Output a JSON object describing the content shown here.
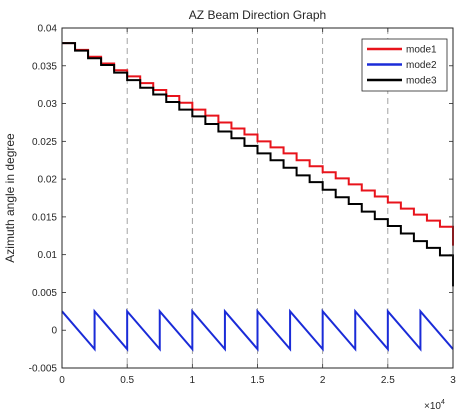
{
  "chart_data": {
    "type": "line",
    "title": "AZ Beam Direction Graph",
    "xlabel": "",
    "ylabel": "Azimuth angle in degree",
    "x_exponent_label": "×10",
    "x_exponent_power": "4",
    "xlim": [
      0,
      30000
    ],
    "ylim": [
      -0.005,
      0.04
    ],
    "x_ticks": [
      0,
      5000,
      10000,
      15000,
      20000,
      25000,
      30000
    ],
    "x_tick_labels": [
      "0",
      "0.5",
      "1",
      "1.5",
      "2",
      "2.5",
      "3"
    ],
    "y_ticks": [
      -0.005,
      0,
      0.005,
      0.01,
      0.015,
      0.02,
      0.025,
      0.03,
      0.035,
      0.04
    ],
    "y_tick_labels": [
      "-0.005",
      "0",
      "0.005",
      "0.01",
      "0.015",
      "0.02",
      "0.025",
      "0.03",
      "0.035",
      "0.04"
    ],
    "vertical_grid_lines_x": [
      5000,
      10000,
      15000,
      20000,
      25000
    ],
    "grid": "vertical dashed",
    "legend_position": "top-right",
    "series": [
      {
        "name": "mode1",
        "color": "#e8131b",
        "style": "staircase",
        "x": [
          0,
          1000,
          2000,
          3000,
          4000,
          5000,
          6000,
          7000,
          8000,
          9000,
          10000,
          11000,
          12000,
          13000,
          14000,
          15000,
          16000,
          17000,
          18000,
          19000,
          20000,
          21000,
          22000,
          23000,
          24000,
          25000,
          26000,
          27000,
          28000,
          29000,
          30000
        ],
        "values": [
          0.038,
          0.0371,
          0.0362,
          0.0353,
          0.0344,
          0.0336,
          0.0327,
          0.0318,
          0.031,
          0.0301,
          0.0292,
          0.0284,
          0.0275,
          0.0267,
          0.0259,
          0.025,
          0.0242,
          0.0234,
          0.0225,
          0.0217,
          0.0209,
          0.0201,
          0.0193,
          0.0185,
          0.0177,
          0.0169,
          0.0161,
          0.0153,
          0.0145,
          0.0137,
          0.0112
        ]
      },
      {
        "name": "mode2",
        "color": "#1a2bd8",
        "style": "sawtooth",
        "x": [
          0,
          2500,
          2500,
          5000,
          5000,
          7500,
          7500,
          10000,
          10000,
          12500,
          12500,
          15000,
          15000,
          17500,
          17500,
          20000,
          20000,
          22500,
          22500,
          25000,
          25000,
          27500,
          27500,
          30000
        ],
        "values": [
          0.0025,
          -0.0025,
          0.0025,
          -0.0025,
          0.0025,
          -0.0025,
          0.0025,
          -0.0025,
          0.0025,
          -0.0025,
          0.0025,
          -0.0025,
          0.0025,
          -0.0025,
          0.0025,
          -0.0025,
          0.0025,
          -0.0025,
          0.0025,
          -0.0025,
          0.0025,
          -0.0025,
          0.0025,
          -0.0025
        ]
      },
      {
        "name": "mode3",
        "color": "#000000",
        "style": "staircase",
        "x": [
          0,
          1000,
          2000,
          3000,
          4000,
          5000,
          6000,
          7000,
          8000,
          9000,
          10000,
          11000,
          12000,
          13000,
          14000,
          15000,
          16000,
          17000,
          18000,
          19000,
          20000,
          21000,
          22000,
          23000,
          24000,
          25000,
          26000,
          27000,
          28000,
          29000,
          30000
        ],
        "values": [
          0.038,
          0.037,
          0.036,
          0.0351,
          0.0341,
          0.0331,
          0.0321,
          0.0312,
          0.0302,
          0.0292,
          0.0283,
          0.0273,
          0.0263,
          0.0254,
          0.0244,
          0.0234,
          0.0225,
          0.0215,
          0.0205,
          0.0196,
          0.0186,
          0.0176,
          0.0167,
          0.0157,
          0.0147,
          0.0138,
          0.0128,
          0.0118,
          0.0109,
          0.0099,
          0.0058
        ]
      }
    ]
  }
}
